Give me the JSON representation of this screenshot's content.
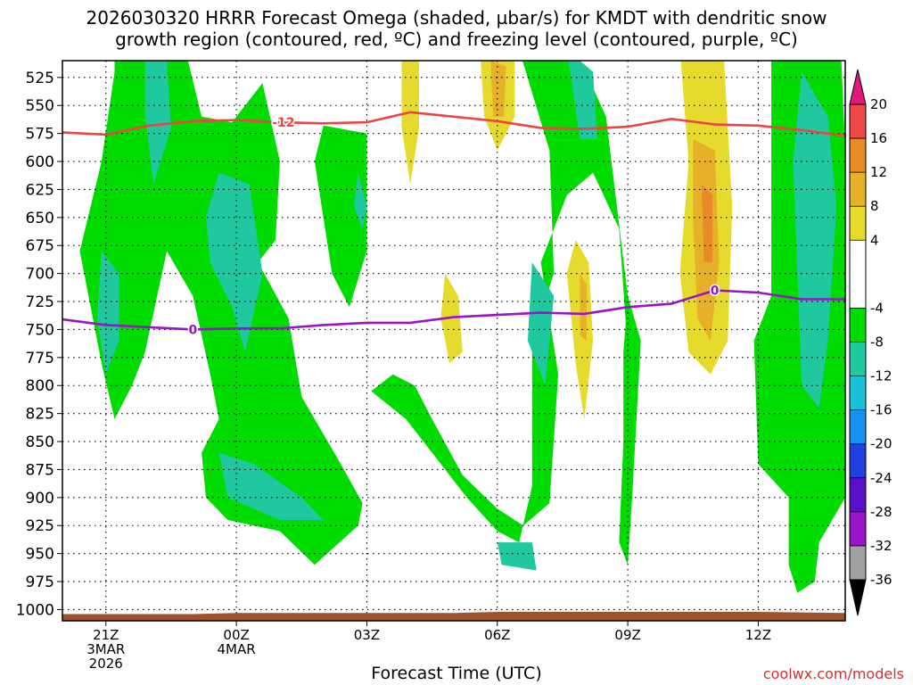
{
  "header": {
    "line1": "2026030320 HRRR Forecast Omega (shaded, µbar/s) for KMDT with dendritic snow",
    "line2": "growth region (contoured, red, ºC) and freezing level (contoured, purple, ºC)"
  },
  "footer": {
    "xaxis_title": "Forecast Time (UTC)",
    "credit": "coolwx.com/models"
  },
  "chart_data": {
    "type": "time-height contour",
    "title": "2026030320 HRRR Forecast Omega (shaded, µbar/s) for KMDT with dendritic snow growth region (contoured, red, ºC) and freezing level (contoured, purple, ºC)",
    "xlabel": "Forecast Time (UTC)",
    "ylabel": "Pressure (mb)",
    "y_ticks": [
      "525",
      "550",
      "575",
      "600",
      "625",
      "650",
      "675",
      "700",
      "725",
      "750",
      "775",
      "800",
      "825",
      "850",
      "875",
      "900",
      "925",
      "950",
      "975",
      "1000"
    ],
    "y_values": [
      525,
      550,
      575,
      600,
      625,
      650,
      675,
      700,
      725,
      750,
      775,
      800,
      825,
      850,
      875,
      900,
      925,
      950,
      975,
      1000
    ],
    "x_ticks": [
      {
        "hour": 1,
        "lines": [
          "21Z",
          "3MAR",
          "2026"
        ]
      },
      {
        "hour": 4,
        "lines": [
          "00Z",
          "4MAR"
        ]
      },
      {
        "hour": 7,
        "lines": [
          "03Z"
        ]
      },
      {
        "hour": 10,
        "lines": [
          "06Z"
        ]
      },
      {
        "hour": 13,
        "lines": [
          "09Z"
        ]
      },
      {
        "hour": 16,
        "lines": [
          "12Z"
        ]
      }
    ],
    "x_range_hours": [
      0,
      18
    ],
    "y_range_mb": [
      510,
      1010
    ],
    "colorbar": {
      "labels": [
        "20",
        "16",
        "12",
        "8",
        "4",
        "-4",
        "-8",
        "-12",
        "-16",
        "-20",
        "-24",
        "-28",
        "-32",
        "-36"
      ],
      "bins": [
        {
          "color": "#e8e8e8",
          "from": -40,
          "to": -36
        },
        {
          "color": "#a0a0a0",
          "from": -36,
          "to": -32
        },
        {
          "color": "#9a14c8",
          "from": -32,
          "to": -28
        },
        {
          "color": "#5a10c8",
          "from": -28,
          "to": -24
        },
        {
          "color": "#2040e0",
          "from": -24,
          "to": -20
        },
        {
          "color": "#1890f0",
          "from": -20,
          "to": -16
        },
        {
          "color": "#18c0d8",
          "from": -16,
          "to": -12
        },
        {
          "color": "#20c8a0",
          "from": -12,
          "to": -8
        },
        {
          "color": "#00dc00",
          "from": -8,
          "to": -4
        },
        {
          "color": "#ffffff",
          "from": -4,
          "to": 4
        },
        {
          "color": "#e6da2c",
          "from": 4,
          "to": 8
        },
        {
          "color": "#e6b028",
          "from": 8,
          "to": 12
        },
        {
          "color": "#e88a28",
          "from": 12,
          "to": 16
        },
        {
          "color": "#ef4848",
          "from": 16,
          "to": 20
        },
        {
          "color": "#e0187a",
          "from": 20,
          "to": 24
        }
      ],
      "top_triangle_color": "#e0187a",
      "bottom_triangle_color": "#000000"
    },
    "series": [
      {
        "name": "dendritic growth -12C",
        "label": "-12",
        "color": "#ee4444",
        "points": [
          [
            0,
            574
          ],
          [
            1,
            576
          ],
          [
            2,
            568
          ],
          [
            3,
            564
          ],
          [
            4,
            563
          ],
          [
            5,
            565
          ],
          [
            6,
            566
          ],
          [
            7,
            565
          ],
          [
            8,
            556
          ],
          [
            9,
            560
          ],
          [
            10,
            564
          ],
          [
            11,
            570
          ],
          [
            12,
            571
          ],
          [
            13,
            569
          ],
          [
            14,
            562
          ],
          [
            15,
            567
          ],
          [
            16,
            568
          ],
          [
            17,
            572
          ],
          [
            18,
            577
          ]
        ]
      },
      {
        "name": "freezing level 0C",
        "label": "0",
        "color": "#9a14c8",
        "points": [
          [
            0,
            741
          ],
          [
            1,
            746
          ],
          [
            2,
            748
          ],
          [
            3,
            750
          ],
          [
            4,
            749
          ],
          [
            5,
            749
          ],
          [
            6,
            746
          ],
          [
            7,
            744
          ],
          [
            8,
            744
          ],
          [
            9,
            739
          ],
          [
            10,
            737
          ],
          [
            11,
            735
          ],
          [
            12,
            736
          ],
          [
            13,
            730
          ],
          [
            14,
            727
          ],
          [
            15,
            715
          ],
          [
            16,
            717
          ],
          [
            17,
            723
          ],
          [
            18,
            723
          ]
        ]
      }
    ],
    "omega_regions": [
      {
        "category": "-8 to -4",
        "color": "#00dc00",
        "points": [
          [
            1.2,
            480
          ],
          [
            2.7,
            480
          ],
          [
            3.2,
            560
          ],
          [
            3.9,
            565
          ],
          [
            4.6,
            530
          ],
          [
            5,
            600
          ],
          [
            4.9,
            670
          ],
          [
            4.5,
            690
          ],
          [
            5.2,
            740
          ],
          [
            5.5,
            810
          ],
          [
            6.4,
            870
          ],
          [
            6.9,
            905
          ],
          [
            6.8,
            925
          ],
          [
            5.8,
            960
          ],
          [
            5,
            930
          ],
          [
            3.8,
            920
          ],
          [
            3.3,
            900
          ],
          [
            3.2,
            860
          ],
          [
            3.6,
            830
          ],
          [
            3.4,
            790
          ],
          [
            3.0,
            720
          ],
          [
            2.4,
            680
          ],
          [
            1.9,
            770
          ],
          [
            1.6,
            800
          ],
          [
            1.2,
            830
          ],
          [
            0.9,
            780
          ],
          [
            0.4,
            680
          ],
          [
            0.9,
            600
          ],
          [
            1.2,
            520
          ]
        ]
      },
      {
        "category": "-8 to -4",
        "color": "#00dc00",
        "points": [
          [
            6,
            568
          ],
          [
            7,
            575
          ],
          [
            7.0,
            680
          ],
          [
            6.6,
            730
          ],
          [
            6.2,
            700
          ],
          [
            5.8,
            600
          ]
        ]
      },
      {
        "category": "-8 to -4",
        "color": "#00dc00",
        "points": [
          [
            8.1,
            800
          ],
          [
            8.5,
            830
          ],
          [
            9.2,
            880
          ],
          [
            10,
            910
          ],
          [
            10.6,
            925
          ],
          [
            11.2,
            905
          ],
          [
            11.4,
            790
          ],
          [
            11.0,
            690
          ],
          [
            11.6,
            630
          ],
          [
            12.2,
            610
          ],
          [
            12.8,
            660
          ],
          [
            13.0,
            770
          ],
          [
            13.0,
            720
          ],
          [
            12.5,
            560
          ],
          [
            11.8,
            500
          ],
          [
            10.5,
            500
          ],
          [
            11.2,
            590
          ],
          [
            11.3,
            700
          ],
          [
            10.8,
            760
          ],
          [
            10.8,
            890
          ],
          [
            10.5,
            940
          ],
          [
            10.0,
            930
          ],
          [
            9.3,
            900
          ],
          [
            8.5,
            860
          ],
          [
            7.9,
            830
          ],
          [
            7.1,
            805
          ],
          [
            7.6,
            790
          ]
        ]
      },
      {
        "category": "-8 to -4",
        "color": "#00dc00",
        "points": [
          [
            13.0,
            720
          ],
          [
            13.3,
            760
          ],
          [
            13.1,
            900
          ],
          [
            13.0,
            960
          ],
          [
            12.8,
            940
          ],
          [
            12.9,
            850
          ],
          [
            12.9,
            770
          ]
        ]
      },
      {
        "category": "-8 to -4",
        "color": "#00dc00",
        "points": [
          [
            16.3,
            500
          ],
          [
            17.9,
            500
          ],
          [
            18,
            590
          ],
          [
            18,
            900
          ],
          [
            17.4,
            940
          ],
          [
            17.3,
            975
          ],
          [
            16.9,
            985
          ],
          [
            16.7,
            960
          ],
          [
            16.7,
            900
          ],
          [
            16.0,
            870
          ],
          [
            15.9,
            760
          ],
          [
            16.3,
            720
          ],
          [
            16.3,
            600
          ]
        ]
      },
      {
        "category": "-12 to -8",
        "color": "#20c8a0",
        "points": [
          [
            1.9,
            500
          ],
          [
            2.4,
            510
          ],
          [
            2.5,
            570
          ],
          [
            2.1,
            620
          ],
          [
            1.9,
            560
          ]
        ]
      },
      {
        "category": "-12 to -8",
        "color": "#20c8a0",
        "points": [
          [
            0.9,
            680
          ],
          [
            1.3,
            700
          ],
          [
            1.3,
            760
          ],
          [
            1.0,
            790
          ],
          [
            0.8,
            740
          ]
        ]
      },
      {
        "category": "-12 to -8",
        "color": "#20c8a0",
        "points": [
          [
            3.6,
            610
          ],
          [
            4.3,
            620
          ],
          [
            4.6,
            700
          ],
          [
            4.2,
            770
          ],
          [
            3.9,
            730
          ],
          [
            3.4,
            690
          ],
          [
            3.3,
            650
          ]
        ]
      },
      {
        "category": "-12 to -8",
        "color": "#20c8a0",
        "points": [
          [
            3.6,
            860
          ],
          [
            4.4,
            870
          ],
          [
            5.5,
            900
          ],
          [
            6.0,
            920
          ],
          [
            5.0,
            920
          ],
          [
            3.8,
            900
          ]
        ]
      },
      {
        "category": "-12 to -8",
        "color": "#20c8a0",
        "points": [
          [
            6.8,
            610
          ],
          [
            7.0,
            640
          ],
          [
            6.9,
            660
          ],
          [
            6.7,
            640
          ]
        ]
      },
      {
        "category": "-12 to -8",
        "color": "#20c8a0",
        "points": [
          [
            10.8,
            690
          ],
          [
            11.3,
            720
          ],
          [
            11.1,
            800
          ],
          [
            10.7,
            760
          ]
        ]
      },
      {
        "category": "-12 to -8",
        "color": "#20c8a0",
        "points": [
          [
            10,
            940
          ],
          [
            10.8,
            940
          ],
          [
            10.9,
            965
          ],
          [
            10.1,
            960
          ]
        ]
      },
      {
        "category": "-12 to -8",
        "color": "#20c8a0",
        "points": [
          [
            11.6,
            500
          ],
          [
            12.2,
            520
          ],
          [
            12.3,
            580
          ],
          [
            11.9,
            580
          ]
        ]
      },
      {
        "category": "-12 to -8",
        "color": "#20c8a0",
        "points": [
          [
            17.0,
            520
          ],
          [
            17.6,
            560
          ],
          [
            17.8,
            640
          ],
          [
            17.6,
            760
          ],
          [
            17.4,
            820
          ],
          [
            17.0,
            800
          ],
          [
            16.9,
            700
          ],
          [
            16.8,
            600
          ]
        ]
      },
      {
        "category": "4 to 8",
        "color": "#e6da2c",
        "points": [
          [
            7.8,
            500
          ],
          [
            8.2,
            510
          ],
          [
            8.2,
            570
          ],
          [
            8.0,
            620
          ],
          [
            7.8,
            570
          ]
        ]
      },
      {
        "category": "4 to 8",
        "color": "#e6da2c",
        "points": [
          [
            8.8,
            700
          ],
          [
            9.1,
            720
          ],
          [
            9.2,
            770
          ],
          [
            8.9,
            780
          ],
          [
            8.7,
            740
          ]
        ]
      },
      {
        "category": "4 to 8",
        "color": "#e6da2c",
        "points": [
          [
            9.6,
            500
          ],
          [
            10.4,
            500
          ],
          [
            10.4,
            560
          ],
          [
            10.0,
            590
          ],
          [
            9.7,
            560
          ]
        ]
      },
      {
        "category": "4 to 8",
        "color": "#e6da2c",
        "points": [
          [
            11.8,
            670
          ],
          [
            12.1,
            690
          ],
          [
            12.2,
            760
          ],
          [
            12.0,
            830
          ],
          [
            11.8,
            780
          ],
          [
            11.6,
            700
          ]
        ]
      },
      {
        "category": "4 to 8",
        "color": "#e6da2c",
        "points": [
          [
            14.2,
            500
          ],
          [
            15.2,
            500
          ],
          [
            15.4,
            640
          ],
          [
            15.3,
            760
          ],
          [
            14.9,
            790
          ],
          [
            14.4,
            770
          ],
          [
            14.2,
            700
          ],
          [
            14.4,
            600
          ]
        ]
      },
      {
        "category": "8 to 12",
        "color": "#e6b028",
        "points": [
          [
            9.85,
            510
          ],
          [
            10.2,
            515
          ],
          [
            10.15,
            560
          ],
          [
            9.9,
            560
          ]
        ]
      },
      {
        "category": "8 to 12",
        "color": "#e6b028",
        "points": [
          [
            11.9,
            700
          ],
          [
            12.05,
            710
          ],
          [
            12.05,
            760
          ],
          [
            11.9,
            755
          ]
        ]
      },
      {
        "category": "8 to 12",
        "color": "#e6b028",
        "points": [
          [
            14.5,
            580
          ],
          [
            15.0,
            590
          ],
          [
            15.1,
            690
          ],
          [
            14.9,
            760
          ],
          [
            14.6,
            740
          ],
          [
            14.5,
            650
          ]
        ]
      },
      {
        "category": "12 to 16",
        "color": "#e88a28",
        "points": [
          [
            14.7,
            620
          ],
          [
            14.95,
            630
          ],
          [
            14.95,
            690
          ],
          [
            14.75,
            690
          ]
        ]
      }
    ],
    "ground_color": "#a0522d"
  }
}
